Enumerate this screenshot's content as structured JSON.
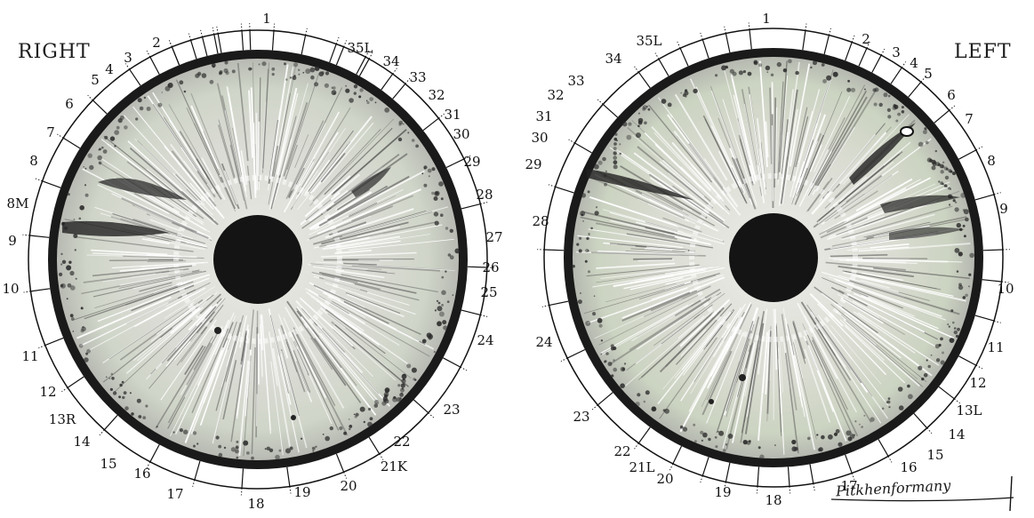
{
  "charts": {
    "right": {
      "title": "RIGHT",
      "labels": [
        "1",
        "2",
        "3",
        "4",
        "5",
        "6",
        "7",
        "8",
        "8M",
        "9",
        "10",
        "11",
        "12",
        "13R",
        "14",
        "15",
        "16",
        "17",
        "18",
        "19",
        "20",
        "21K",
        "22",
        "23",
        "24",
        "25",
        "26",
        "27",
        "28",
        "29",
        "30",
        "31",
        "32",
        "33",
        "34",
        "35L"
      ]
    },
    "left": {
      "title": "LEFT",
      "labels": [
        "1",
        "2",
        "3",
        "4",
        "5",
        "6",
        "7",
        "8",
        "9",
        "10",
        "11",
        "12",
        "13L",
        "14",
        "15",
        "16",
        "17",
        "18",
        "19",
        "20",
        "21L",
        "22",
        "23",
        "24",
        "28",
        "29",
        "30",
        "31",
        "32",
        "33",
        "34",
        "35L"
      ]
    }
  },
  "signature": "Pitkhenformany",
  "colors": {
    "ink": "#111111",
    "iris_base": "#d9d9d6",
    "iris_tint": "#c9d2c0",
    "pupil": "#141414"
  }
}
